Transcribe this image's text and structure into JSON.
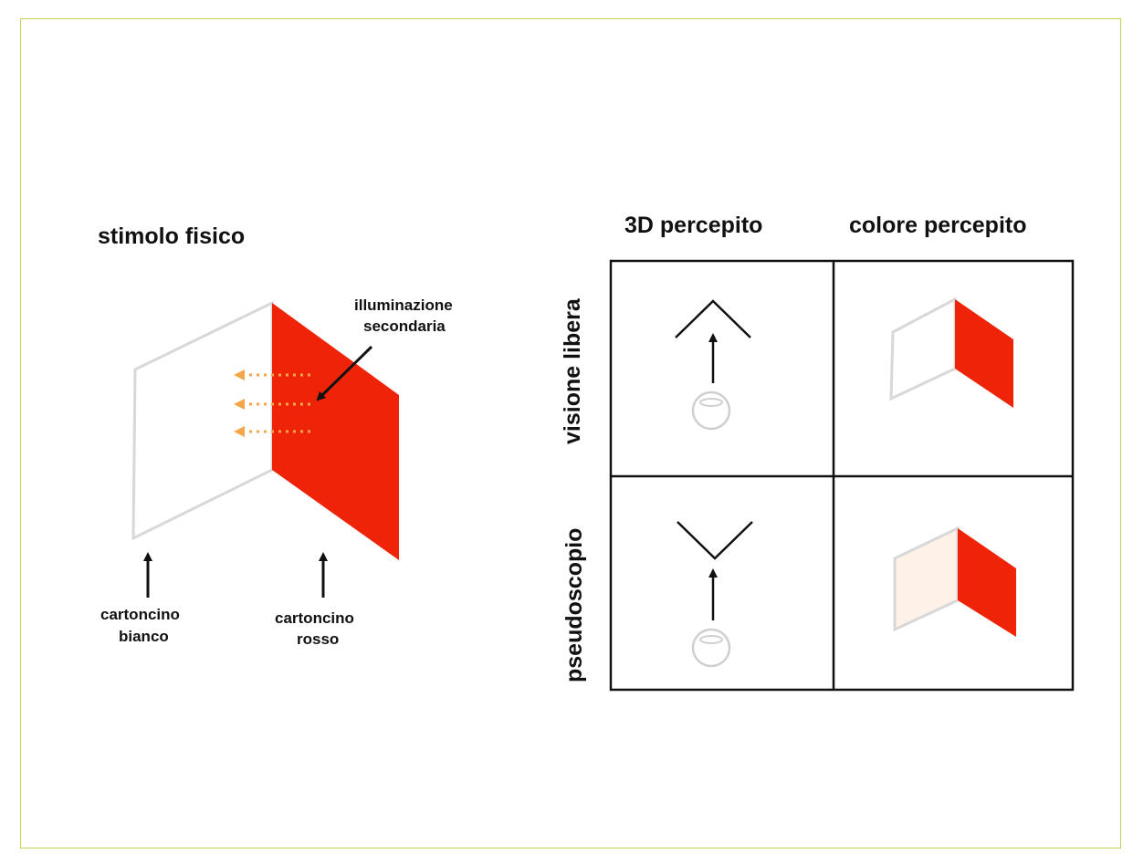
{
  "left_panel": {
    "title": "stimolo fisico",
    "secondary_light_label_line1": "illuminazione",
    "secondary_light_label_line2": "secondaria",
    "white_card_label_line1": "cartoncino",
    "white_card_label_line2": "bianco",
    "red_card_label_line1": "cartoncino",
    "red_card_label_line2": "rosso"
  },
  "grid": {
    "col_headers": [
      "3D percepito",
      "colore percepito"
    ],
    "row_headers": [
      "visione libera",
      "pseudoscopio"
    ]
  },
  "colors": {
    "red_card": "#ee2308",
    "white_card_outline": "#d8d8d8",
    "tinted_card": "#fdf1e8",
    "light_arrows": "#f5a64a",
    "frame_border": "#c9d35a"
  },
  "icons": [
    "eye-icon",
    "arrow-up-icon",
    "convex-angle-icon",
    "concave-angle-icon"
  ]
}
